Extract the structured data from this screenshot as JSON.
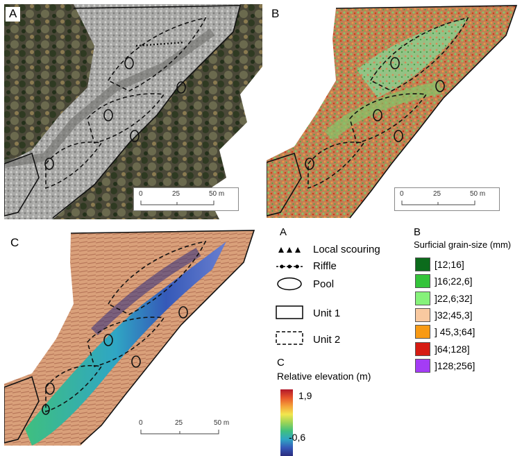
{
  "panels": [
    {
      "label": "A",
      "scale": {
        "ticks": [
          "0",
          "25",
          "50 m"
        ]
      }
    },
    {
      "label": "B",
      "scale": {
        "ticks": [
          "0",
          "25",
          "50 m"
        ]
      }
    },
    {
      "label": "C",
      "scale": {
        "ticks": [
          "0",
          "25",
          "50 m"
        ]
      }
    }
  ],
  "legend_a": {
    "heading": "A",
    "items": [
      {
        "label": "Local scouring",
        "icon": "triangles-icon"
      },
      {
        "label": "Riffle",
        "icon": "dotted-line-icon"
      },
      {
        "label": "Pool",
        "icon": "ellipse-icon"
      },
      {
        "label": "Unit 1",
        "icon": "solid-rectangle-icon"
      },
      {
        "label": "Unit 2",
        "icon": "dashed-rectangle-icon"
      }
    ]
  },
  "legend_b": {
    "heading": "B",
    "title": "Surficial grain-size (mm)",
    "classes": [
      {
        "label": "[12;16]",
        "color": "#0c6b1c"
      },
      {
        "label": "]16;22,6]",
        "color": "#34c43a"
      },
      {
        "label": "]22,6;32]",
        "color": "#86f27a"
      },
      {
        "label": "]32;45,3]",
        "color": "#f9c9a0"
      },
      {
        "label": "] 45,3;64]",
        "color": "#f89a14"
      },
      {
        "label": "]64;128]",
        "color": "#d61b12"
      },
      {
        "label": "]128;256]",
        "color": "#a43cf5"
      }
    ]
  },
  "legend_c": {
    "heading": "C",
    "title": "Relative elevation (m)",
    "max": "1,9",
    "min": "-0,6",
    "colors": [
      "#b2182b",
      "#f4a23a",
      "#f2e64e",
      "#3fbf7f",
      "#2fa6c4",
      "#2b2c7e"
    ]
  }
}
